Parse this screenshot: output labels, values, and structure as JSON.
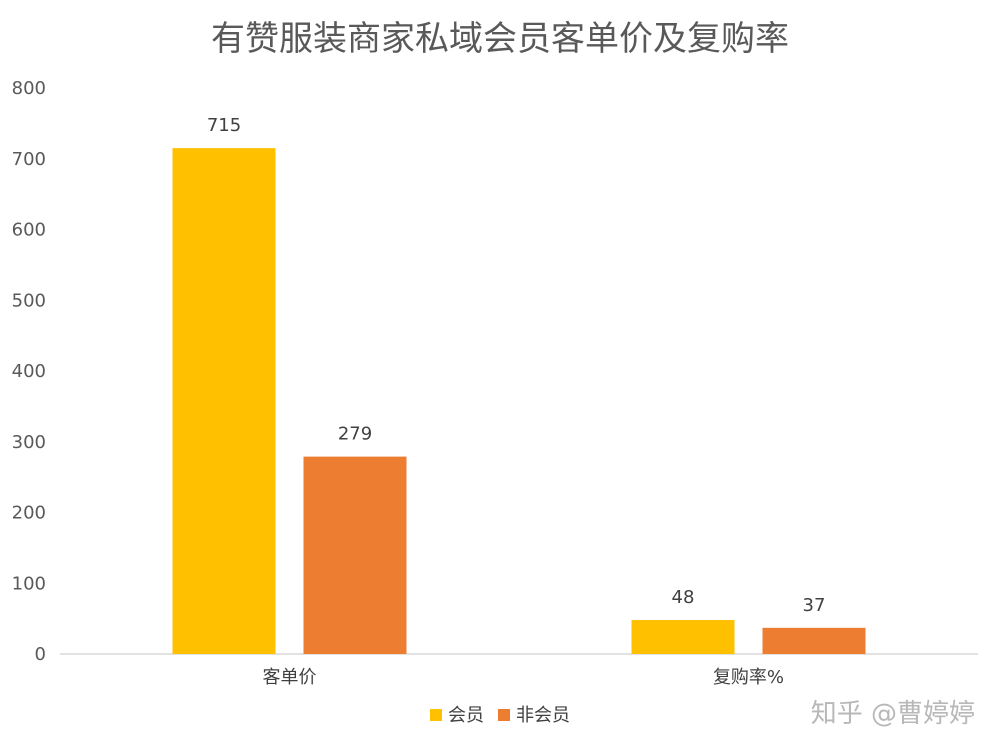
{
  "chart_data": {
    "type": "bar",
    "title": "有赞服装商家私域会员客单价及复购率",
    "categories": [
      "客单价",
      "复购率%"
    ],
    "series": [
      {
        "name": "会员",
        "color": "#FFC000",
        "values": [
          715,
          48
        ]
      },
      {
        "name": "非会员",
        "color": "#ED7D31",
        "values": [
          279,
          37
        ]
      }
    ],
    "ylim": [
      0,
      800
    ],
    "yticks": [
      0,
      100,
      200,
      300,
      400,
      500,
      600,
      700,
      800
    ],
    "grid": false,
    "legend": "bottom"
  },
  "watermark": "知乎 @曹婷婷"
}
